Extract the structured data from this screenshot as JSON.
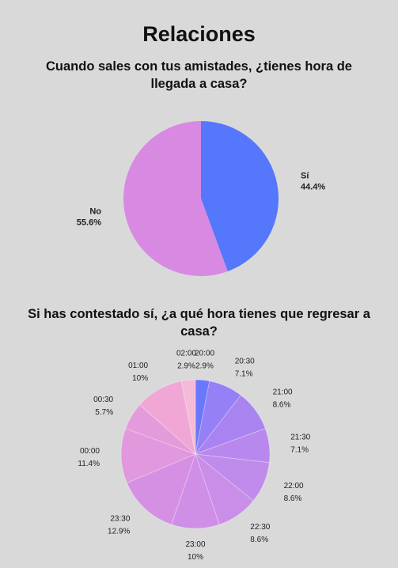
{
  "page": {
    "title": "Relaciones"
  },
  "chart_data": [
    {
      "type": "pie",
      "title": "Cuando sales con tus amistades, ¿tienes hora de llegada a casa?",
      "categories": [
        "Sí",
        "No"
      ],
      "values": [
        44.4,
        55.6
      ],
      "labels": [
        "44.4%",
        "55.6%"
      ],
      "colors": [
        "#5577fb",
        "#d88ae3"
      ],
      "start": "12 o'clock, clockwise"
    },
    {
      "type": "pie",
      "title": "Si has contestado sí, ¿a qué hora tienes que regresar a casa?",
      "categories": [
        "20:00",
        "20:30",
        "21:00",
        "21:30",
        "22:00",
        "22:30",
        "23:00",
        "23:30",
        "00:00",
        "00:30",
        "01:00",
        "02:00"
      ],
      "values": [
        2.9,
        7.1,
        8.6,
        7.1,
        8.6,
        8.6,
        10,
        12.9,
        11.4,
        5.7,
        10,
        2.9
      ],
      "labels": [
        "2.9%",
        "7.1%",
        "8.6%",
        "7.1%",
        "8.6%",
        "8.6%",
        "10%",
        "12.9%",
        "11.4%",
        "5.7%",
        "10%",
        "2.9%"
      ],
      "colors": [
        "#6a78fb",
        "#9580f5",
        "#a984f1",
        "#b988ee",
        "#c08cec",
        "#c98ee8",
        "#d08fe6",
        "#d590e4",
        "#e298dc",
        "#e49bdb",
        "#f0a7d6",
        "#f4bbd8"
      ],
      "start": "12 o'clock, clockwise"
    }
  ]
}
